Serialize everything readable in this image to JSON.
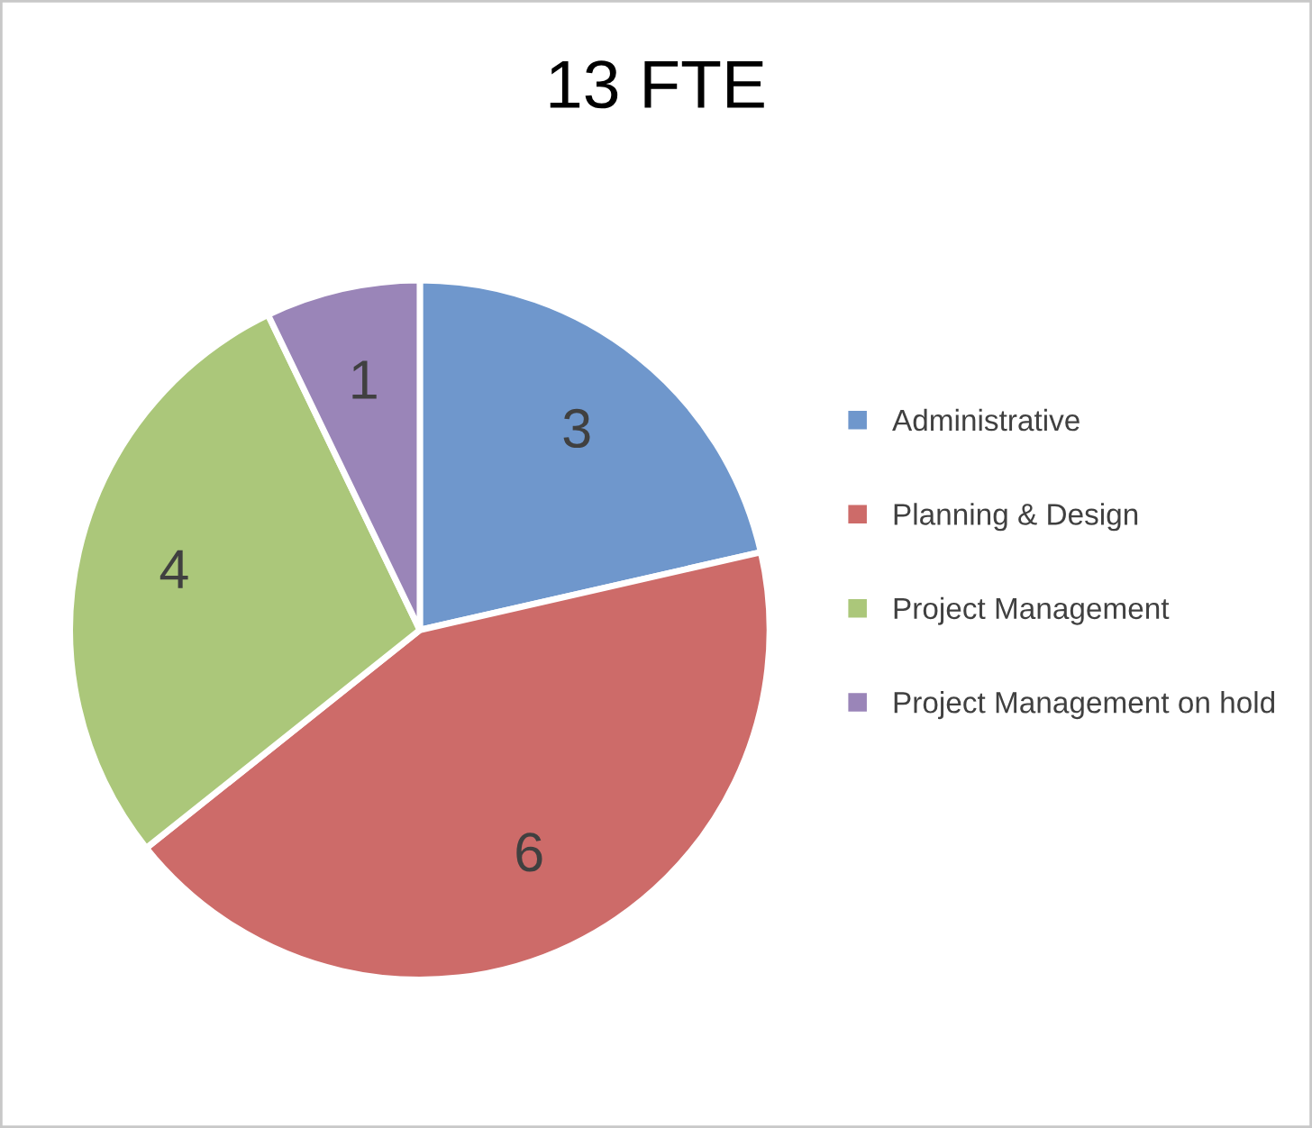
{
  "chart_data": {
    "type": "pie",
    "title": "13 FTE",
    "categories": [
      "Administrative",
      "Planning & Design",
      "Project Management",
      "Project Management on hold"
    ],
    "values": [
      3,
      6,
      4,
      1
    ],
    "colors": [
      "#6f97cc",
      "#cd6b69",
      "#abc77a",
      "#9a85b8"
    ],
    "data_labels": true,
    "legend": "right"
  }
}
